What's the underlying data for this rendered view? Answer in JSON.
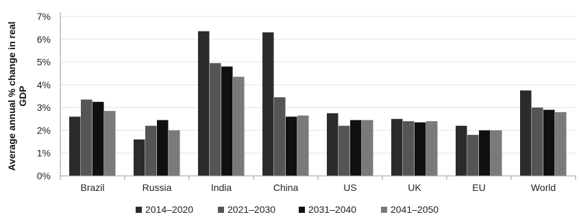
{
  "chart_data": {
    "type": "bar",
    "ylabel": "Average annual % change in real GDP",
    "ylim": [
      0,
      7
    ],
    "yticks": [
      "0%",
      "1%",
      "2%",
      "3%",
      "4%",
      "5%",
      "6%",
      "7%"
    ],
    "grid": true,
    "legend_position": "bottom",
    "categories": [
      "Brazil",
      "Russia",
      "India",
      "China",
      "US",
      "UK",
      "EU",
      "World"
    ],
    "series": [
      {
        "name": "2014–2020",
        "color": "#2b2b2b",
        "values": [
          2.6,
          1.6,
          6.35,
          6.3,
          2.75,
          2.5,
          2.2,
          3.75
        ]
      },
      {
        "name": "2021–2030",
        "color": "#555555",
        "values": [
          3.35,
          2.2,
          4.95,
          3.45,
          2.2,
          2.4,
          1.8,
          3.0
        ]
      },
      {
        "name": "2031–2040",
        "color": "#101010",
        "values": [
          3.25,
          2.45,
          4.8,
          2.6,
          2.45,
          2.35,
          2.0,
          2.9
        ]
      },
      {
        "name": "2041–2050",
        "color": "#7a7a7a",
        "values": [
          2.85,
          2.0,
          4.35,
          2.65,
          2.45,
          2.4,
          2.0,
          2.8
        ]
      }
    ]
  }
}
